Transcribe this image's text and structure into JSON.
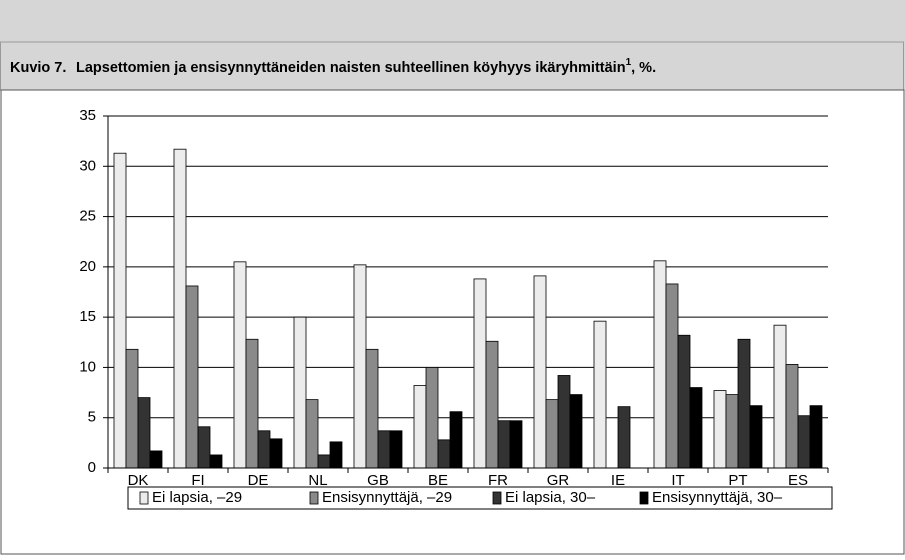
{
  "chart_data": {
    "type": "bar",
    "label": "Kuvio 7.",
    "title": "Lapsettomien ja ensisynnyttäneiden naisten suhteellinen köyhyys ikäryhmittäin",
    "title_note": "1",
    "title_suffix": ", %.",
    "categories": [
      "DK",
      "FI",
      "DE",
      "NL",
      "GB",
      "BE",
      "FR",
      "GR",
      "IE",
      "IT",
      "PT",
      "ES"
    ],
    "series": [
      {
        "name": "Ei lapsia, –29",
        "color": "#ececec",
        "values": [
          31.3,
          31.7,
          20.5,
          15,
          20.2,
          8.2,
          18.8,
          19.1,
          14.6,
          20.6,
          7.7,
          14.2
        ]
      },
      {
        "name": "Ensisynnyttäjä, –29",
        "color": "#8a8a8a",
        "values": [
          11.8,
          18.1,
          12.8,
          6.8,
          11.8,
          10,
          12.6,
          6.8,
          null,
          18.3,
          7.3,
          10.3
        ]
      },
      {
        "name": "Ei lapsia, 30–",
        "color": "#333333",
        "values": [
          7,
          4.1,
          3.7,
          1.3,
          3.7,
          2.8,
          4.7,
          9.2,
          6.1,
          13.2,
          12.8,
          5.2
        ]
      },
      {
        "name": "Ensisynnyttäjä, 30–",
        "color": "#000000",
        "values": [
          1.7,
          1.3,
          2.9,
          2.6,
          3.7,
          5.6,
          4.7,
          7.3,
          null,
          8,
          6.2,
          6.2
        ]
      }
    ],
    "ylim": [
      0,
      35
    ],
    "yticks": [
      0,
      5,
      10,
      15,
      20,
      25,
      30,
      35
    ],
    "grid": true
  }
}
